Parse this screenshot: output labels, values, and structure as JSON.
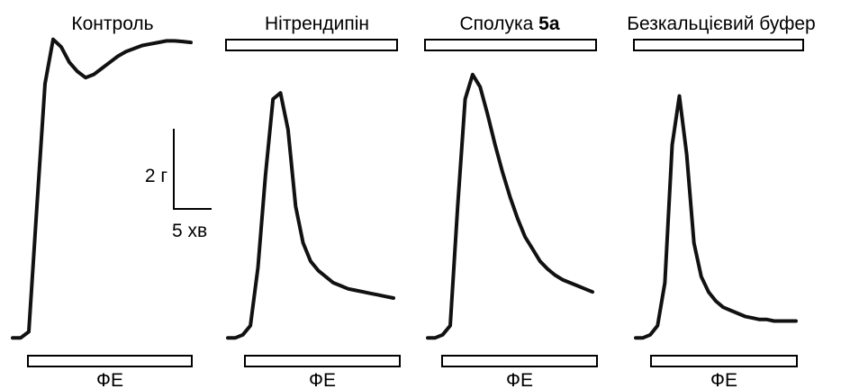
{
  "chart_data": [
    {
      "type": "line",
      "title": "Контроль",
      "title_bold_suffix": "",
      "top_bar": false,
      "bottom_bar_label": "ФЕ",
      "series": [
        {
          "values": [
            0.02,
            0.02,
            0.04,
            0.45,
            0.85,
            0.995,
            0.97,
            0.92,
            0.89,
            0.87,
            0.88,
            0.9,
            0.92,
            0.94,
            0.955,
            0.965,
            0.975,
            0.98,
            0.985,
            0.99,
            0.99,
            0.988,
            0.985
          ]
        }
      ]
    },
    {
      "type": "line",
      "title": "Нітрендипін",
      "title_bold_suffix": "",
      "top_bar": true,
      "bottom_bar_label": "ФЕ",
      "series": [
        {
          "values": [
            0.02,
            0.02,
            0.03,
            0.06,
            0.25,
            0.55,
            0.8,
            0.82,
            0.7,
            0.45,
            0.33,
            0.27,
            0.24,
            0.22,
            0.2,
            0.19,
            0.18,
            0.175,
            0.17,
            0.165,
            0.16,
            0.155,
            0.15
          ]
        }
      ]
    },
    {
      "type": "line",
      "title": "Сполука ",
      "title_bold_suffix": "5a",
      "top_bar": true,
      "bottom_bar_label": "ФЕ",
      "series": [
        {
          "values": [
            0.02,
            0.02,
            0.03,
            0.06,
            0.45,
            0.8,
            0.88,
            0.84,
            0.75,
            0.65,
            0.56,
            0.48,
            0.41,
            0.35,
            0.31,
            0.27,
            0.245,
            0.225,
            0.21,
            0.2,
            0.19,
            0.18,
            0.17
          ]
        }
      ]
    },
    {
      "type": "line",
      "title": "Безкальцієвий буфер",
      "title_bold_suffix": "",
      "top_bar": true,
      "bottom_bar_label": "ФЕ",
      "series": [
        {
          "values": [
            0.02,
            0.02,
            0.03,
            0.06,
            0.2,
            0.65,
            0.81,
            0.62,
            0.33,
            0.22,
            0.17,
            0.14,
            0.12,
            0.11,
            0.1,
            0.09,
            0.085,
            0.08,
            0.08,
            0.075,
            0.075,
            0.075,
            0.075
          ]
        }
      ]
    }
  ],
  "scale_bar": {
    "vertical_label": "2 г",
    "horizontal_label": "5 хв"
  }
}
